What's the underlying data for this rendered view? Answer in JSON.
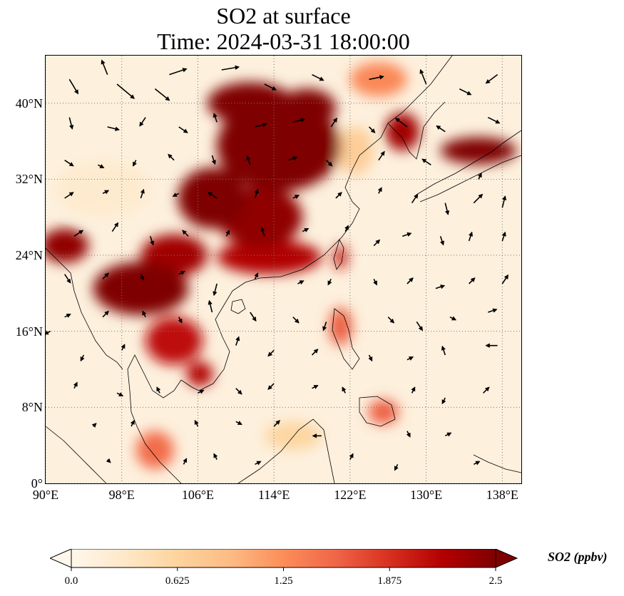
{
  "title": {
    "line1": "SO2 at surface",
    "line2": "Time: 2024-03-31 18:00:00"
  },
  "map": {
    "extent": {
      "lon_min": 90,
      "lon_max": 140,
      "lat_min": 0,
      "lat_max": 45
    },
    "gridline_style": "dotted grey",
    "lat_ticks": [
      {
        "value": 40,
        "label": "40°N"
      },
      {
        "value": 32,
        "label": "32°N"
      },
      {
        "value": 24,
        "label": "24°N"
      },
      {
        "value": 16,
        "label": "16°N"
      },
      {
        "value": 8,
        "label": "8°N"
      },
      {
        "value": 0,
        "label": "0°"
      }
    ],
    "lon_ticks": [
      {
        "value": 90,
        "label": "90°E"
      },
      {
        "value": 98,
        "label": "98°E"
      },
      {
        "value": 106,
        "label": "106°E"
      },
      {
        "value": 114,
        "label": "114°E"
      },
      {
        "value": 122,
        "label": "122°E"
      },
      {
        "value": 130,
        "label": "130°E"
      },
      {
        "value": 138,
        "label": "138°E"
      }
    ],
    "field_regions": [
      {
        "name": "north-china-plain",
        "lon": 114.5,
        "lat": 35.5,
        "rx_deg": 6.5,
        "ry_deg": 4.8,
        "level": 2.5
      },
      {
        "name": "inner-mongolia-belt",
        "lon": 111.5,
        "lat": 40.0,
        "rx_deg": 4.5,
        "ry_deg": 2.2,
        "level": 2.5
      },
      {
        "name": "sichuan-chongqing",
        "lon": 107.5,
        "lat": 30.0,
        "rx_deg": 3.6,
        "ry_deg": 3.2,
        "level": 2.5
      },
      {
        "name": "central-china",
        "lon": 112.5,
        "lat": 28.0,
        "rx_deg": 4.5,
        "ry_deg": 3.2,
        "level": 2.4
      },
      {
        "name": "south-china",
        "lon": 113.5,
        "lat": 23.8,
        "rx_deg": 5.5,
        "ry_deg": 1.8,
        "level": 2.2
      },
      {
        "name": "yunnan",
        "lon": 103.5,
        "lat": 24.0,
        "rx_deg": 3.5,
        "ry_deg": 2.2,
        "level": 2.3
      },
      {
        "name": "myanmar-laos",
        "lon": 100.0,
        "lat": 20.5,
        "rx_deg": 5.0,
        "ry_deg": 2.8,
        "level": 2.5
      },
      {
        "name": "bangladesh-east-india",
        "lon": 92.0,
        "lat": 25.0,
        "rx_deg": 2.5,
        "ry_deg": 1.8,
        "level": 2.4
      },
      {
        "name": "thailand-cambodia",
        "lon": 103.5,
        "lat": 15.0,
        "rx_deg": 3.0,
        "ry_deg": 2.5,
        "level": 2.1
      },
      {
        "name": "vietnam-south",
        "lon": 106.2,
        "lat": 11.5,
        "rx_deg": 1.4,
        "ry_deg": 1.3,
        "level": 2.2
      },
      {
        "name": "korea",
        "lon": 127.5,
        "lat": 37.0,
        "rx_deg": 1.8,
        "ry_deg": 2.0,
        "level": 2.3
      },
      {
        "name": "japan-honshu",
        "lon": 135.5,
        "lat": 35.0,
        "rx_deg": 4.0,
        "ry_deg": 1.4,
        "level": 2.5
      },
      {
        "name": "taiwan",
        "lon": 121.0,
        "lat": 23.8,
        "rx_deg": 0.7,
        "ry_deg": 1.3,
        "level": 2.0
      },
      {
        "name": "luzon",
        "lon": 121.0,
        "lat": 16.5,
        "rx_deg": 1.2,
        "ry_deg": 2.0,
        "level": 1.6
      },
      {
        "name": "mindanao",
        "lon": 125.5,
        "lat": 7.5,
        "rx_deg": 1.6,
        "ry_deg": 1.3,
        "level": 1.6
      },
      {
        "name": "malay-peninsula",
        "lon": 101.5,
        "lat": 3.5,
        "rx_deg": 2.0,
        "ry_deg": 2.0,
        "level": 1.5
      },
      {
        "name": "hebei-coast",
        "lon": 117.5,
        "lat": 39.5,
        "rx_deg": 3.0,
        "ry_deg": 2.0,
        "level": 2.5
      },
      {
        "name": "northeast-china",
        "lon": 125.0,
        "lat": 42.5,
        "rx_deg": 3.0,
        "ry_deg": 1.8,
        "level": 1.3
      },
      {
        "name": "tibet-plateau",
        "lon": 96.0,
        "lat": 31.0,
        "rx_deg": 5.0,
        "ry_deg": 3.0,
        "level": 0.25
      },
      {
        "name": "borneo-coast",
        "lon": 116.0,
        "lat": 5.0,
        "rx_deg": 3.0,
        "ry_deg": 1.5,
        "level": 0.6
      },
      {
        "name": "yellow-sea",
        "lon": 122.5,
        "lat": 35.0,
        "rx_deg": 2.0,
        "ry_deg": 2.5,
        "level": 0.7
      }
    ],
    "wind_vectors": [
      {
        "lon": 92.5,
        "lat": 42.5,
        "u": 1.5,
        "v": -2.5
      },
      {
        "lon": 96.5,
        "lat": 43.0,
        "u": -1.0,
        "v": 2.5
      },
      {
        "lon": 97.5,
        "lat": 42.0,
        "u": 3.0,
        "v": -2.5
      },
      {
        "lon": 101.5,
        "lat": 41.5,
        "u": 2.5,
        "v": -2.0
      },
      {
        "lon": 103.0,
        "lat": 43.0,
        "u": 3.0,
        "v": 1.0
      },
      {
        "lon": 108.5,
        "lat": 43.5,
        "u": 3.0,
        "v": 0.5
      },
      {
        "lon": 113.0,
        "lat": 42.0,
        "u": 2.0,
        "v": -1.0
      },
      {
        "lon": 118.0,
        "lat": 43.0,
        "u": 2.0,
        "v": -1.0
      },
      {
        "lon": 124.0,
        "lat": 42.5,
        "u": 2.5,
        "v": 0.5
      },
      {
        "lon": 130.0,
        "lat": 42.0,
        "u": -1.0,
        "v": 2.5
      },
      {
        "lon": 133.5,
        "lat": 41.5,
        "u": 2.0,
        "v": -1.0
      },
      {
        "lon": 137.5,
        "lat": 43.0,
        "u": -2.0,
        "v": -1.5
      },
      {
        "lon": 92.5,
        "lat": 38.5,
        "u": 0.5,
        "v": -2.0
      },
      {
        "lon": 96.5,
        "lat": 37.5,
        "u": 2.0,
        "v": -0.5
      },
      {
        "lon": 100.5,
        "lat": 38.5,
        "u": -1.0,
        "v": -1.5
      },
      {
        "lon": 104.0,
        "lat": 37.5,
        "u": 1.5,
        "v": -1.0
      },
      {
        "lon": 108.0,
        "lat": 38.0,
        "u": -0.5,
        "v": 1.5
      },
      {
        "lon": 112.0,
        "lat": 37.5,
        "u": 2.0,
        "v": 0.5
      },
      {
        "lon": 116.0,
        "lat": 38.0,
        "u": 2.0,
        "v": 0.5
      },
      {
        "lon": 120.0,
        "lat": 37.5,
        "u": 1.0,
        "v": 1.5
      },
      {
        "lon": 124.0,
        "lat": 37.5,
        "u": 1.0,
        "v": -1.0
      },
      {
        "lon": 128.0,
        "lat": 37.5,
        "u": -2.0,
        "v": 1.5
      },
      {
        "lon": 132.0,
        "lat": 37.0,
        "u": -1.5,
        "v": 1.0
      },
      {
        "lon": 136.5,
        "lat": 38.5,
        "u": 2.0,
        "v": -1.0
      },
      {
        "lon": 92.0,
        "lat": 34.0,
        "u": 1.5,
        "v": -1.0
      },
      {
        "lon": 95.5,
        "lat": 33.5,
        "u": 1.0,
        "v": -0.5
      },
      {
        "lon": 99.5,
        "lat": 34.0,
        "u": -0.5,
        "v": -1.0
      },
      {
        "lon": 103.5,
        "lat": 34.0,
        "u": -1.0,
        "v": 1.0
      },
      {
        "lon": 107.5,
        "lat": 34.5,
        "u": 0.5,
        "v": -1.5
      },
      {
        "lon": 111.5,
        "lat": 33.5,
        "u": -0.5,
        "v": 1.5
      },
      {
        "lon": 115.5,
        "lat": 34.0,
        "u": 1.5,
        "v": 0.5
      },
      {
        "lon": 119.5,
        "lat": 34.0,
        "u": 1.0,
        "v": -1.0
      },
      {
        "lon": 125.0,
        "lat": 34.0,
        "u": 1.0,
        "v": 1.5
      },
      {
        "lon": 130.5,
        "lat": 33.5,
        "u": -1.5,
        "v": 1.0
      },
      {
        "lon": 135.5,
        "lat": 32.0,
        "u": 0.5,
        "v": 1.0
      },
      {
        "lon": 92.0,
        "lat": 30.0,
        "u": 1.5,
        "v": 1.0
      },
      {
        "lon": 96.0,
        "lat": 30.5,
        "u": 1.0,
        "v": 0.5
      },
      {
        "lon": 100.0,
        "lat": 30.0,
        "u": 0.5,
        "v": 1.5
      },
      {
        "lon": 104.0,
        "lat": 30.5,
        "u": -1.0,
        "v": -0.5
      },
      {
        "lon": 108.0,
        "lat": 30.0,
        "u": -1.5,
        "v": 1.0
      },
      {
        "lon": 112.0,
        "lat": 30.0,
        "u": 0.5,
        "v": 1.5
      },
      {
        "lon": 116.0,
        "lat": 30.0,
        "u": 1.0,
        "v": 0.5
      },
      {
        "lon": 120.5,
        "lat": 30.0,
        "u": 1.0,
        "v": 1.0
      },
      {
        "lon": 125.0,
        "lat": 30.5,
        "u": 0.5,
        "v": 1.0
      },
      {
        "lon": 128.5,
        "lat": 29.5,
        "u": 1.0,
        "v": 1.5
      },
      {
        "lon": 132.0,
        "lat": 29.5,
        "u": 0.5,
        "v": -2.0
      },
      {
        "lon": 135.0,
        "lat": 29.5,
        "u": 1.5,
        "v": 1.5
      },
      {
        "lon": 138.0,
        "lat": 29.0,
        "u": 0.5,
        "v": 2.0
      },
      {
        "lon": 93.0,
        "lat": 26.0,
        "u": 1.5,
        "v": 1.0
      },
      {
        "lon": 97.0,
        "lat": 26.5,
        "u": 1.0,
        "v": 1.5
      },
      {
        "lon": 101.0,
        "lat": 26.0,
        "u": 0.5,
        "v": -1.5
      },
      {
        "lon": 105.0,
        "lat": 26.0,
        "u": -1.0,
        "v": 1.0
      },
      {
        "lon": 109.0,
        "lat": 26.0,
        "u": 0.5,
        "v": 1.0
      },
      {
        "lon": 113.0,
        "lat": 26.0,
        "u": -0.5,
        "v": 1.5
      },
      {
        "lon": 117.0,
        "lat": 26.5,
        "u": 1.0,
        "v": 0.5
      },
      {
        "lon": 121.5,
        "lat": 26.5,
        "u": 0.5,
        "v": 1.0
      },
      {
        "lon": 124.5,
        "lat": 25.0,
        "u": 1.0,
        "v": 1.0
      },
      {
        "lon": 127.5,
        "lat": 26.0,
        "u": 1.5,
        "v": 0.5
      },
      {
        "lon": 131.5,
        "lat": 26.0,
        "u": 0.5,
        "v": -1.5
      },
      {
        "lon": 134.5,
        "lat": 25.5,
        "u": 0.5,
        "v": 1.5
      },
      {
        "lon": 138.0,
        "lat": 25.5,
        "u": 0.5,
        "v": 1.5
      },
      {
        "lon": 92.0,
        "lat": 22.0,
        "u": 1.0,
        "v": -1.5
      },
      {
        "lon": 96.0,
        "lat": 21.5,
        "u": 1.0,
        "v": 1.0
      },
      {
        "lon": 100.0,
        "lat": 22.0,
        "u": 0.5,
        "v": -1.0
      },
      {
        "lon": 104.0,
        "lat": 22.0,
        "u": 1.0,
        "v": 0.5
      },
      {
        "lon": 108.0,
        "lat": 21.0,
        "u": -0.5,
        "v": -2.0
      },
      {
        "lon": 112.0,
        "lat": 21.5,
        "u": 0.5,
        "v": 1.0
      },
      {
        "lon": 116.5,
        "lat": 21.0,
        "u": 1.0,
        "v": 0.5
      },
      {
        "lon": 120.0,
        "lat": 21.5,
        "u": -0.5,
        "v": -1.0
      },
      {
        "lon": 124.5,
        "lat": 21.5,
        "u": 0.5,
        "v": -1.0
      },
      {
        "lon": 128.0,
        "lat": 21.0,
        "u": 1.0,
        "v": 1.0
      },
      {
        "lon": 131.0,
        "lat": 20.5,
        "u": 1.5,
        "v": 0.5
      },
      {
        "lon": 134.5,
        "lat": 21.0,
        "u": 1.0,
        "v": 1.0
      },
      {
        "lon": 138.0,
        "lat": 21.0,
        "u": 1.0,
        "v": 1.5
      },
      {
        "lon": 92.0,
        "lat": 17.5,
        "u": 1.0,
        "v": 0.5
      },
      {
        "lon": 96.0,
        "lat": 17.5,
        "u": 1.0,
        "v": 1.0
      },
      {
        "lon": 100.5,
        "lat": 17.5,
        "u": -0.5,
        "v": 1.0
      },
      {
        "lon": 104.0,
        "lat": 17.5,
        "u": 0.5,
        "v": -1.0
      },
      {
        "lon": 107.5,
        "lat": 18.0,
        "u": -0.5,
        "v": 2.0
      },
      {
        "lon": 111.5,
        "lat": 18.0,
        "u": 1.0,
        "v": -1.5
      },
      {
        "lon": 116.0,
        "lat": 17.5,
        "u": 1.0,
        "v": -1.0
      },
      {
        "lon": 119.5,
        "lat": 17.0,
        "u": -0.5,
        "v": -1.5
      },
      {
        "lon": 126.0,
        "lat": 17.5,
        "u": 1.0,
        "v": -1.0
      },
      {
        "lon": 129.0,
        "lat": 17.0,
        "u": 1.0,
        "v": -1.5
      },
      {
        "lon": 132.5,
        "lat": 17.5,
        "u": 1.0,
        "v": -0.5
      },
      {
        "lon": 136.5,
        "lat": 18.0,
        "u": 1.5,
        "v": 0.5
      },
      {
        "lon": 90.5,
        "lat": 16.0,
        "u": -1.0,
        "v": -0.5
      },
      {
        "lon": 94.0,
        "lat": 13.5,
        "u": -0.5,
        "v": -1.0
      },
      {
        "lon": 98.0,
        "lat": 14.0,
        "u": 0.5,
        "v": 1.0
      },
      {
        "lon": 110.0,
        "lat": 14.5,
        "u": 0.5,
        "v": 1.5
      },
      {
        "lon": 114.0,
        "lat": 14.0,
        "u": -1.0,
        "v": -1.0
      },
      {
        "lon": 118.0,
        "lat": 13.5,
        "u": 1.0,
        "v": 1.0
      },
      {
        "lon": 124.0,
        "lat": 13.5,
        "u": 0.5,
        "v": -1.0
      },
      {
        "lon": 128.0,
        "lat": 13.0,
        "u": 1.0,
        "v": 0.5
      },
      {
        "lon": 132.0,
        "lat": 13.5,
        "u": -0.5,
        "v": 1.5
      },
      {
        "lon": 137.5,
        "lat": 14.5,
        "u": -2.0,
        "v": 0.0
      },
      {
        "lon": 93.0,
        "lat": 10.0,
        "u": 0.5,
        "v": 1.0
      },
      {
        "lon": 97.5,
        "lat": 9.5,
        "u": 1.0,
        "v": -0.5
      },
      {
        "lon": 102.0,
        "lat": 9.5,
        "u": -0.5,
        "v": 1.0
      },
      {
        "lon": 106.0,
        "lat": 9.5,
        "u": 1.0,
        "v": 0.5
      },
      {
        "lon": 110.0,
        "lat": 10.0,
        "u": 1.0,
        "v": -1.0
      },
      {
        "lon": 114.0,
        "lat": 10.5,
        "u": -1.0,
        "v": -1.0
      },
      {
        "lon": 118.0,
        "lat": 10.0,
        "u": 1.0,
        "v": 0.5
      },
      {
        "lon": 121.5,
        "lat": 9.5,
        "u": -0.5,
        "v": 1.0
      },
      {
        "lon": 128.5,
        "lat": 9.5,
        "u": 0.5,
        "v": 1.0
      },
      {
        "lon": 132.0,
        "lat": 9.0,
        "u": -0.5,
        "v": -1.0
      },
      {
        "lon": 136.0,
        "lat": 9.5,
        "u": 1.0,
        "v": 1.0
      },
      {
        "lon": 95.0,
        "lat": 6.0,
        "u": 0.5,
        "v": 0.5
      },
      {
        "lon": 99.0,
        "lat": 6.0,
        "u": 0.5,
        "v": 1.0
      },
      {
        "lon": 106.0,
        "lat": 6.0,
        "u": -0.5,
        "v": 1.0
      },
      {
        "lon": 110.0,
        "lat": 6.5,
        "u": 1.0,
        "v": -0.5
      },
      {
        "lon": 114.0,
        "lat": 6.0,
        "u": 1.0,
        "v": 1.0
      },
      {
        "lon": 119.0,
        "lat": 5.0,
        "u": -1.5,
        "v": 0.0
      },
      {
        "lon": 128.0,
        "lat": 5.5,
        "u": 0.5,
        "v": -1.0
      },
      {
        "lon": 132.0,
        "lat": 5.0,
        "u": 1.0,
        "v": 0.5
      },
      {
        "lon": 96.5,
        "lat": 2.5,
        "u": 0.5,
        "v": -0.5
      },
      {
        "lon": 104.5,
        "lat": 2.0,
        "u": 0.5,
        "v": 1.0
      },
      {
        "lon": 108.0,
        "lat": 2.5,
        "u": -0.5,
        "v": 1.0
      },
      {
        "lon": 112.0,
        "lat": 2.0,
        "u": 1.0,
        "v": 0.5
      },
      {
        "lon": 122.0,
        "lat": 2.5,
        "u": 0.5,
        "v": 1.0
      },
      {
        "lon": 127.0,
        "lat": 2.0,
        "u": -0.5,
        "v": -1.0
      },
      {
        "lon": 135.0,
        "lat": 2.0,
        "u": 1.0,
        "v": 0.5
      }
    ]
  },
  "colorbar": {
    "label": "SO2 (ppbv)",
    "min": 0.0,
    "max": 2.5,
    "extend": "both",
    "colormap": "OrRd",
    "stops": [
      "#fff7ec",
      "#fee8c8",
      "#fdd49e",
      "#fdbb84",
      "#fc8d59",
      "#ef6548",
      "#d7301f",
      "#b30000",
      "#7f0000"
    ],
    "ticks": [
      {
        "value": 0.0,
        "label": "0.0"
      },
      {
        "value": 0.625,
        "label": "0.625"
      },
      {
        "value": 1.25,
        "label": "1.25"
      },
      {
        "value": 1.875,
        "label": "1.875"
      },
      {
        "value": 2.5,
        "label": "2.5"
      }
    ]
  }
}
